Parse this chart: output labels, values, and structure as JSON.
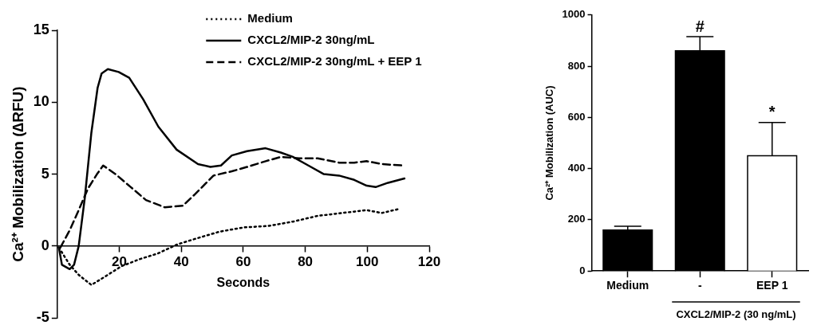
{
  "chart_data": [
    {
      "type": "line",
      "xlabel": "Seconds",
      "ylabel": "Ca²⁺ Mobilization (∆RFU)",
      "xlim": [
        0,
        120
      ],
      "xticks": [
        20,
        40,
        60,
        80,
        100,
        120
      ],
      "ylim": [
        -5,
        15
      ],
      "yticks": [
        -5,
        0,
        5,
        10,
        15
      ],
      "grid": false,
      "legend": "top right",
      "marker": "none",
      "series": [
        {
          "name": "Medium",
          "color": "#000000",
          "line_style": "dotted",
          "x": [
            0.5,
            4,
            6.9,
            11,
            14.8,
            20.7,
            26.7,
            32.6,
            38.5,
            44.4,
            52.3,
            60.2,
            68.1,
            76,
            84,
            91.9,
            99.8,
            104.7,
            110.6
          ],
          "values": [
            -0.1,
            -1.3,
            -2.0,
            -2.7,
            -2.2,
            -1.4,
            -0.9,
            -0.5,
            0.1,
            0.5,
            1.0,
            1.3,
            1.4,
            1.7,
            2.1,
            2.3,
            2.5,
            2.3,
            2.6
          ]
        },
        {
          "name": "CXCL2/MIP-2 30ng/mL",
          "color": "#000000",
          "line_style": "solid",
          "x": [
            0.5,
            1.5,
            4,
            5.4,
            6.9,
            8.9,
            11,
            13,
            14.3,
            16.3,
            19.8,
            23.2,
            27.7,
            32.6,
            38.5,
            45.4,
            49.4,
            52.8,
            56.3,
            61.2,
            67.2,
            72.1,
            76,
            81,
            86,
            90.9,
            95.8,
            99.8,
            102.7,
            106.7,
            112
          ],
          "values": [
            -0.1,
            -1.3,
            -1.6,
            -1.3,
            0,
            3.4,
            7.9,
            11.0,
            12.0,
            12.3,
            12.1,
            11.7,
            10.2,
            8.3,
            6.7,
            5.7,
            5.5,
            5.6,
            6.3,
            6.6,
            6.8,
            6.5,
            6.2,
            5.6,
            5.0,
            4.9,
            4.6,
            4.2,
            4.1,
            4.4,
            4.7
          ]
        },
        {
          "name": "CXCL2/MIP-2 30ng/mL + EEP 1",
          "color": "#000000",
          "line_style": "dashed",
          "x": [
            1,
            4,
            6.9,
            9.9,
            12.8,
            14.8,
            18.8,
            23.7,
            28.6,
            34.6,
            40.5,
            44.4,
            50.4,
            56.3,
            61.2,
            67.2,
            72.1,
            78,
            84,
            90.9,
            95.8,
            99.8,
            104.7,
            111.6
          ],
          "values": [
            -0.1,
            1.1,
            2.5,
            4.0,
            5.0,
            5.6,
            5.0,
            4.1,
            3.2,
            2.7,
            2.8,
            3.6,
            4.9,
            5.2,
            5.5,
            5.9,
            6.2,
            6.1,
            6.1,
            5.8,
            5.8,
            5.9,
            5.7,
            5.6
          ]
        }
      ]
    },
    {
      "type": "bar",
      "ylabel": "Ca²⁺ Mobilization (AUC)",
      "categories": [
        "Medium",
        "-",
        "EEP 1"
      ],
      "values": [
        160,
        860,
        450
      ],
      "colors": [
        "#000000",
        "#000000",
        "#ffffff"
      ],
      "errors": [
        [
          160,
          175
        ],
        [
          860,
          915
        ],
        [
          450,
          580
        ]
      ],
      "ylim": [
        0,
        1000
      ],
      "yticks": [
        0,
        200,
        400,
        600,
        800,
        1000
      ],
      "grid": false,
      "annotations": [
        {
          "text": "#",
          "x": "-",
          "y": 915
        },
        {
          "text": "*",
          "x": "EEP 1",
          "y": 580
        },
        "CXCL2/MIP-2 (30 ng/mL)"
      ]
    }
  ]
}
